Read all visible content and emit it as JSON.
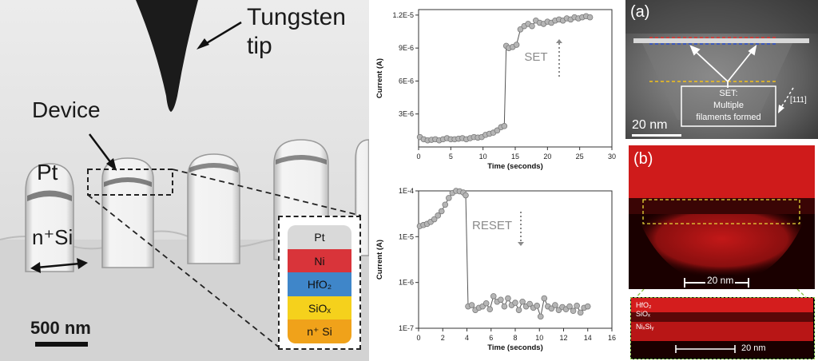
{
  "sem": {
    "tip_label_line1": "Tungsten",
    "tip_label_line2": "tip",
    "device_label": "Device",
    "pt_label": "Pt",
    "nsi_label": "n⁺Si",
    "scale_bar": "500 nm",
    "stack_layers": [
      {
        "label": "Pt",
        "color": "#d9d9d9"
      },
      {
        "label": "Ni",
        "color": "#d9343a"
      },
      {
        "label": "HfO₂",
        "color": "#3f86c9"
      },
      {
        "label": "SiOₓ",
        "color": "#f5d11c"
      },
      {
        "label": "n⁺ Si",
        "color": "#f0a21a"
      }
    ]
  },
  "chart_data": [
    {
      "type": "scatter",
      "title": "",
      "xlabel": "Time (seconds)",
      "ylabel": "Current (A)",
      "annotation": "SET",
      "xlim": [
        0,
        30
      ],
      "xticks": [
        0,
        5,
        10,
        15,
        20,
        25,
        30
      ],
      "ylim": [
        0,
        1.25e-05
      ],
      "yticks": [
        3e-06,
        6e-06,
        9e-06,
        1.2e-05
      ],
      "ytick_labels": [
        "3E-6",
        "6E-6",
        "9E-6",
        "1.2E-5"
      ],
      "x": [
        0.2,
        0.8,
        1.4,
        2.0,
        2.6,
        3.2,
        3.8,
        4.4,
        5.0,
        5.6,
        6.2,
        6.8,
        7.4,
        8.0,
        8.6,
        9.2,
        9.8,
        10.4,
        11.0,
        11.6,
        12.2,
        12.8,
        13.3,
        13.6,
        14.0,
        14.6,
        15.2,
        15.8,
        16.4,
        17.0,
        17.6,
        18.2,
        18.8,
        19.4,
        20.0,
        20.6,
        21.2,
        21.8,
        22.4,
        23.0,
        23.6,
        24.2,
        24.8,
        25.4,
        26.0,
        26.6
      ],
      "y": [
        9e-07,
        7e-07,
        6e-07,
        6.5e-07,
        7e-07,
        6e-07,
        7e-07,
        8e-07,
        7e-07,
        7e-07,
        7.5e-07,
        8e-07,
        7e-07,
        8e-07,
        9e-07,
        8.5e-07,
        9e-07,
        1.1e-06,
        1.2e-06,
        1.3e-06,
        1.5e-06,
        1.8e-06,
        1.9e-06,
        9.2e-06,
        9e-06,
        9.1e-06,
        9.3e-06,
        1.07e-05,
        1.1e-05,
        1.12e-05,
        1.1e-05,
        1.15e-05,
        1.13e-05,
        1.12e-05,
        1.14e-05,
        1.13e-05,
        1.15e-05,
        1.16e-05,
        1.15e-05,
        1.17e-05,
        1.16e-05,
        1.18e-05,
        1.17e-05,
        1.18e-05,
        1.19e-05,
        1.18e-05
      ]
    },
    {
      "type": "scatter",
      "title": "",
      "xlabel": "Time (seconds)",
      "ylabel": "Current (A)",
      "annotation": "RESET",
      "log_y": true,
      "xlim": [
        0,
        16
      ],
      "xticks": [
        0,
        2,
        4,
        6,
        8,
        10,
        12,
        14,
        16
      ],
      "ylim": [
        1e-07,
        0.0001
      ],
      "yticks": [
        1e-07,
        1e-06,
        1e-05,
        0.0001
      ],
      "ytick_labels": [
        "1E-7",
        "1E-6",
        "1E-5",
        "1E-4"
      ],
      "x": [
        0.1,
        0.4,
        0.7,
        1.0,
        1.3,
        1.6,
        1.9,
        2.2,
        2.5,
        2.8,
        3.1,
        3.4,
        3.7,
        3.9,
        4.1,
        4.4,
        4.7,
        5.0,
        5.3,
        5.6,
        5.9,
        6.2,
        6.5,
        6.8,
        7.1,
        7.4,
        7.7,
        8.0,
        8.3,
        8.6,
        8.9,
        9.2,
        9.5,
        9.8,
        10.1,
        10.4,
        10.7,
        11.0,
        11.3,
        11.6,
        11.9,
        12.2,
        12.5,
        12.8,
        13.1,
        13.4,
        13.7,
        14.0
      ],
      "y": [
        1.7e-05,
        1.8e-05,
        1.9e-05,
        2.1e-05,
        2.4e-05,
        2.9e-05,
        3.6e-05,
        5e-05,
        7e-05,
        9e-05,
        0.0001,
        9.8e-05,
        9.2e-05,
        8e-05,
        3e-07,
        3.2e-07,
        2.5e-07,
        2.8e-07,
        3e-07,
        3.5e-07,
        2.6e-07,
        5e-07,
        3.8e-07,
        4.2e-07,
        3e-07,
        4.5e-07,
        3.2e-07,
        3.6e-07,
        2.5e-07,
        3.8e-07,
        3e-07,
        3.4e-07,
        2.8e-07,
        3.1e-07,
        1.8e-07,
        4.5e-07,
        3e-07,
        2.7e-07,
        3.2e-07,
        2.5e-07,
        2.9e-07,
        2.6e-07,
        3e-07,
        2.4e-07,
        3.1e-07,
        2.2e-07,
        2.8e-07,
        3e-07
      ]
    }
  ],
  "tem": {
    "panel_label": "(a)",
    "callout_line1": "SET:",
    "callout_line2": "Multiple",
    "callout_line3": "filaments formed",
    "direction_label": "[111]",
    "scale_bar": "20 nm"
  },
  "eds": {
    "panel_label": "(b)",
    "scale_bar": "20 nm"
  },
  "inset": {
    "hfo2_label": "HfO₂",
    "siox_label": "SiOₓ",
    "nisi_label": "NiₓSiᵧ",
    "scale_bar": "20 nm"
  }
}
